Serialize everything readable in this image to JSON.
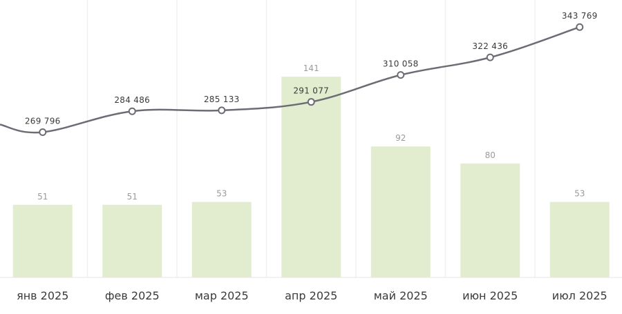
{
  "chart_data": {
    "type": "bar+line",
    "categories": [
      "янв 2025",
      "фев 2025",
      "мар 2025",
      "апр 2025",
      "май 2025",
      "июн 2025",
      "июл 2025"
    ],
    "bars": {
      "values": [
        51,
        51,
        53,
        141,
        92,
        80,
        53
      ],
      "labels": [
        "51",
        "51",
        "53",
        "141",
        "92",
        "80",
        "53"
      ],
      "color": "#e2edcf",
      "ylim": [
        0,
        190
      ]
    },
    "line": {
      "values": [
        269796,
        284486,
        285133,
        291077,
        310058,
        322436,
        343769
      ],
      "labels": [
        "269 796",
        "284 486",
        "285 133",
        "291 077",
        "310 058",
        "322 436",
        "343 769"
      ],
      "color": "#6d6b73",
      "ylim": [
        168000,
        357000
      ]
    },
    "grid": true
  }
}
